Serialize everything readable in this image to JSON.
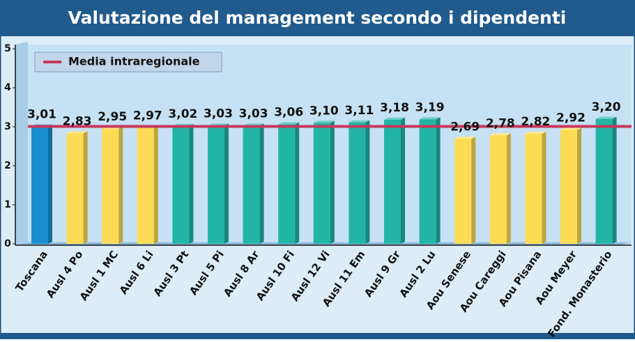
{
  "chart_data": {
    "type": "bar",
    "title": "Valutazione del management secondo i dipendenti",
    "categories": [
      "Toscana",
      "Ausl 4 Po",
      "Ausl 1 MC",
      "Ausl 6 Li",
      "Ausl 3 Pt",
      "Ausl 5 Pi",
      "Ausl 8 Ar",
      "Ausl 10 Fi",
      "Ausl 12 Vi",
      "Ausl 11 Em",
      "Ausl 9 Gr",
      "Ausl 2 Lu",
      "Aou Senese",
      "Aou Careggi",
      "Aou Pisana",
      "Aou Meyer",
      "Fond. Monasterio"
    ],
    "values": [
      3.01,
      2.83,
      2.95,
      2.97,
      3.02,
      3.03,
      3.03,
      3.06,
      3.1,
      3.11,
      3.18,
      3.19,
      2.69,
      2.78,
      2.82,
      2.92,
      3.2
    ],
    "value_labels": [
      "3,01",
      "2,83",
      "2,95",
      "2,97",
      "3,02",
      "3,03",
      "3,03",
      "3,06",
      "3,10",
      "3,11",
      "3,18",
      "3,19",
      "2,69",
      "2,78",
      "2,82",
      "2,92",
      "3,20"
    ],
    "colors": [
      "#1a8fd0",
      "#fcdc55",
      "#fcdc55",
      "#fcdc55",
      "#22b5a5",
      "#22b5a5",
      "#22b5a5",
      "#22b5a5",
      "#22b5a5",
      "#22b5a5",
      "#22b5a5",
      "#22b5a5",
      "#fcdc55",
      "#fcdc55",
      "#fcdc55",
      "#fcdc55",
      "#22b5a5"
    ],
    "reference": {
      "name": "Media intraregionale",
      "value": 3.01,
      "color": "#c8385a"
    },
    "ylim": [
      0,
      5
    ],
    "yticks": [
      0,
      1,
      2,
      3,
      4,
      5
    ],
    "grid": false
  }
}
